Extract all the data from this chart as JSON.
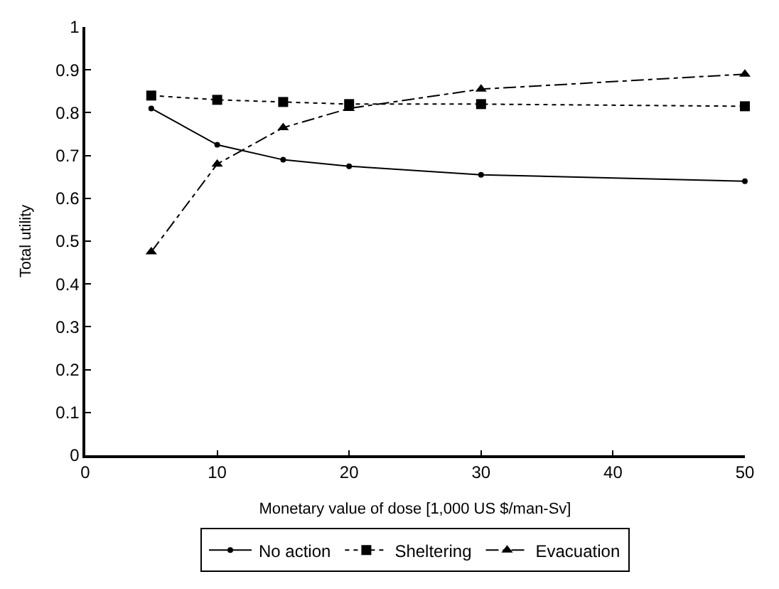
{
  "chart_data": {
    "type": "line",
    "xlabel": "Monetary value of dose [1,000 US $/man-Sv]",
    "ylabel": "Total utility",
    "x": [
      5,
      10,
      15,
      20,
      30,
      50
    ],
    "series": [
      {
        "name": "No action",
        "color": "#000000",
        "values": [
          0.81,
          0.725,
          0.69,
          0.675,
          0.655,
          0.64
        ],
        "marker": "circle",
        "line_style": "solid"
      },
      {
        "name": "Sheltering",
        "color": "#000000",
        "values": [
          0.84,
          0.83,
          0.825,
          0.82,
          0.82,
          0.815
        ],
        "marker": "square",
        "line_style": "dotted"
      },
      {
        "name": "Evacuation",
        "color": "#000000",
        "values": [
          0.475,
          0.68,
          0.765,
          0.81,
          0.855,
          0.89
        ],
        "marker": "triangle",
        "line_style": "dashed"
      }
    ],
    "xlim": [
      0,
      50
    ],
    "xticks": [
      0,
      10,
      20,
      30,
      40,
      50
    ],
    "ylim": [
      0,
      1
    ],
    "yticks": [
      0,
      0.1,
      0.2,
      0.3,
      0.4,
      0.5,
      0.6,
      0.7,
      0.8,
      0.9,
      1
    ],
    "legend": "bottom"
  }
}
